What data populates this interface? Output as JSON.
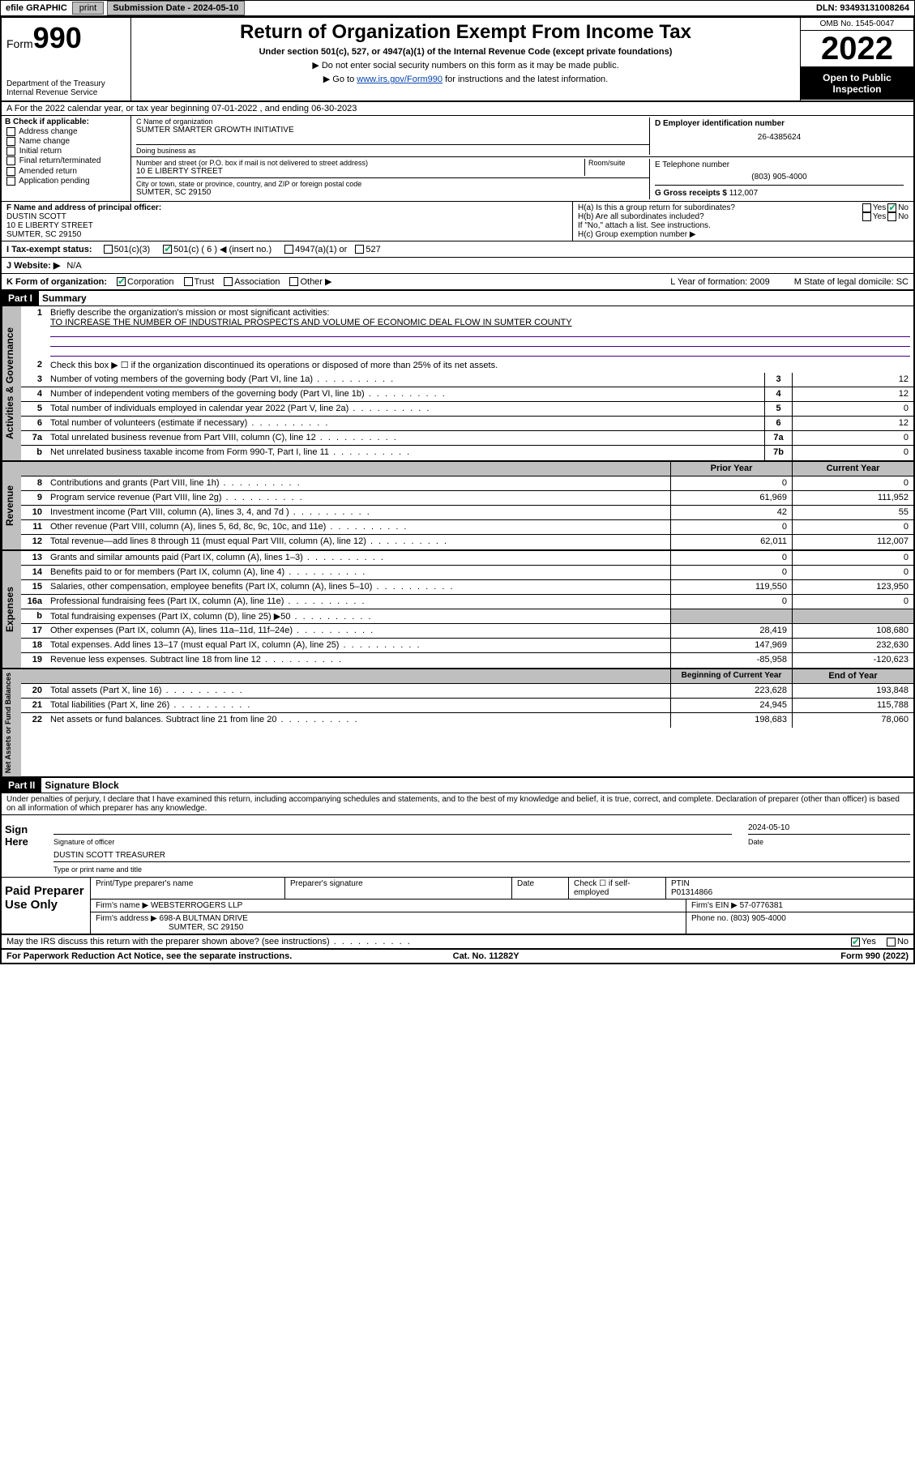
{
  "topbar": {
    "efile": "efile GRAPHIC",
    "print": "print",
    "submission": "Submission Date - 2024-05-10",
    "dln": "DLN: 93493131008264"
  },
  "header": {
    "form_prefix": "Form",
    "form_no": "990",
    "dept": "Department of the Treasury",
    "irs": "Internal Revenue Service",
    "title": "Return of Organization Exempt From Income Tax",
    "subtitle": "Under section 501(c), 527, or 4947(a)(1) of the Internal Revenue Code (except private foundations)",
    "note1": "▶ Do not enter social security numbers on this form as it may be made public.",
    "note2_pre": "▶ Go to ",
    "note2_link": "www.irs.gov/Form990",
    "note2_post": " for instructions and the latest information.",
    "omb": "OMB No. 1545-0047",
    "year": "2022",
    "open": "Open to Public Inspection"
  },
  "rowA": "A For the 2022 calendar year, or tax year beginning 07-01-2022    , and ending 06-30-2023",
  "colB": {
    "hdr": "B Check if applicable:",
    "items": [
      "Address change",
      "Name change",
      "Initial return",
      "Final return/terminated",
      "Amended return",
      "Application pending"
    ]
  },
  "colC": {
    "lblC": "C Name of organization",
    "name": "SUMTER SMARTER GROWTH INITIATIVE",
    "dba": "Doing business as",
    "lblAddr": "Number and street (or P.O. box if mail is not delivered to street address)",
    "room": "Room/suite",
    "addr": "10 E LIBERTY STREET",
    "lblCity": "City or town, state or province, country, and ZIP or foreign postal code",
    "city": "SUMTER, SC  29150"
  },
  "colD": {
    "lblD": "D Employer identification number",
    "ein": "26-4385624",
    "lblE": "E Telephone number",
    "phone": "(803) 905-4000",
    "lblG": "G Gross receipts $",
    "gross": "112,007"
  },
  "rowF": {
    "lbl": "F Name and address of principal officer:",
    "name": "DUSTIN SCOTT",
    "addr1": "10 E LIBERTY STREET",
    "addr2": "SUMTER, SC  29150"
  },
  "rowH": {
    "ha": "H(a)  Is this a group return for subordinates?",
    "hb": "H(b)  Are all subordinates included?",
    "hb2": "If \"No,\" attach a list. See instructions.",
    "hc": "H(c)  Group exemption number ▶"
  },
  "rowI": {
    "lbl": "I   Tax-exempt status:",
    "o1": "501(c)(3)",
    "o2": "501(c) ( 6 ) ◀ (insert no.)",
    "o3": "4947(a)(1) or",
    "o4": "527"
  },
  "rowJ": {
    "lbl": "J   Website: ▶",
    "val": "N/A"
  },
  "rowK": {
    "lbl": "K Form of organization:",
    "o1": "Corporation",
    "o2": "Trust",
    "o3": "Association",
    "o4": "Other ▶",
    "l": "L Year of formation: 2009",
    "m": "M State of legal domicile: SC"
  },
  "part1": {
    "hdr": "Part I",
    "title": "Summary",
    "l1a": "Briefly describe the organization's mission or most significant activities:",
    "l1b": "TO INCREASE THE NUMBER OF INDUSTRIAL PROSPECTS AND VOLUME OF ECONOMIC DEAL FLOW IN SUMTER COUNTY",
    "l2": "Check this box ▶ ☐  if the organization discontinued its operations or disposed of more than 25% of its net assets.",
    "rows_gov": [
      {
        "n": "3",
        "t": "Number of voting members of the governing body (Part VI, line 1a)",
        "b": "3",
        "v": "12"
      },
      {
        "n": "4",
        "t": "Number of independent voting members of the governing body (Part VI, line 1b)",
        "b": "4",
        "v": "12"
      },
      {
        "n": "5",
        "t": "Total number of individuals employed in calendar year 2022 (Part V, line 2a)",
        "b": "5",
        "v": "0"
      },
      {
        "n": "6",
        "t": "Total number of volunteers (estimate if necessary)",
        "b": "6",
        "v": "12"
      },
      {
        "n": "7a",
        "t": "Total unrelated business revenue from Part VIII, column (C), line 12",
        "b": "7a",
        "v": "0"
      },
      {
        "n": "b",
        "t": "Net unrelated business taxable income from Form 990-T, Part I, line 11",
        "b": "7b",
        "v": "0"
      }
    ],
    "col_prior": "Prior Year",
    "col_curr": "Current Year",
    "rev": [
      {
        "n": "8",
        "t": "Contributions and grants (Part VIII, line 1h)",
        "p": "0",
        "c": "0"
      },
      {
        "n": "9",
        "t": "Program service revenue (Part VIII, line 2g)",
        "p": "61,969",
        "c": "111,952"
      },
      {
        "n": "10",
        "t": "Investment income (Part VIII, column (A), lines 3, 4, and 7d )",
        "p": "42",
        "c": "55"
      },
      {
        "n": "11",
        "t": "Other revenue (Part VIII, column (A), lines 5, 6d, 8c, 9c, 10c, and 11e)",
        "p": "0",
        "c": "0"
      },
      {
        "n": "12",
        "t": "Total revenue—add lines 8 through 11 (must equal Part VIII, column (A), line 12)",
        "p": "62,011",
        "c": "112,007"
      }
    ],
    "exp": [
      {
        "n": "13",
        "t": "Grants and similar amounts paid (Part IX, column (A), lines 1–3)",
        "p": "0",
        "c": "0"
      },
      {
        "n": "14",
        "t": "Benefits paid to or for members (Part IX, column (A), line 4)",
        "p": "0",
        "c": "0"
      },
      {
        "n": "15",
        "t": "Salaries, other compensation, employee benefits (Part IX, column (A), lines 5–10)",
        "p": "119,550",
        "c": "123,950"
      },
      {
        "n": "16a",
        "t": "Professional fundraising fees (Part IX, column (A), line 11e)",
        "p": "0",
        "c": "0"
      },
      {
        "n": "b",
        "t": "Total fundraising expenses (Part IX, column (D), line 25) ▶50",
        "p": "",
        "c": ""
      },
      {
        "n": "17",
        "t": "Other expenses (Part IX, column (A), lines 11a–11d, 11f–24e)",
        "p": "28,419",
        "c": "108,680"
      },
      {
        "n": "18",
        "t": "Total expenses. Add lines 13–17 (must equal Part IX, column (A), line 25)",
        "p": "147,969",
        "c": "232,630"
      },
      {
        "n": "19",
        "t": "Revenue less expenses. Subtract line 18 from line 12",
        "p": "-85,958",
        "c": "-120,623"
      }
    ],
    "col_beg": "Beginning of Current Year",
    "col_end": "End of Year",
    "net": [
      {
        "n": "20",
        "t": "Total assets (Part X, line 16)",
        "p": "223,628",
        "c": "193,848"
      },
      {
        "n": "21",
        "t": "Total liabilities (Part X, line 26)",
        "p": "24,945",
        "c": "115,788"
      },
      {
        "n": "22",
        "t": "Net assets or fund balances. Subtract line 21 from line 20",
        "p": "198,683",
        "c": "78,060"
      }
    ],
    "tabs": {
      "gov": "Activities & Governance",
      "rev": "Revenue",
      "exp": "Expenses",
      "net": "Net Assets or Fund Balances"
    }
  },
  "part2": {
    "hdr": "Part II",
    "title": "Signature Block",
    "decl": "Under penalties of perjury, I declare that I have examined this return, including accompanying schedules and statements, and to the best of my knowledge and belief, it is true, correct, and complete. Declaration of preparer (other than officer) is based on all information of which preparer has any knowledge.",
    "sign_here": "Sign Here",
    "sig_officer": "Signature of officer",
    "sig_date": "2024-05-10",
    "date_lbl": "Date",
    "officer": "DUSTIN SCOTT TREASURER",
    "officer_lbl": "Type or print name and title",
    "paid": "Paid Preparer Use Only",
    "p_name_lbl": "Print/Type preparer's name",
    "p_sig_lbl": "Preparer's signature",
    "p_date_lbl": "Date",
    "p_check": "Check ☐ if self-employed",
    "ptin_lbl": "PTIN",
    "ptin": "P01314866",
    "firm_name_lbl": "Firm's name    ▶",
    "firm_name": "WEBSTERROGERS LLP",
    "firm_ein_lbl": "Firm's EIN ▶",
    "firm_ein": "57-0776381",
    "firm_addr_lbl": "Firm's address ▶",
    "firm_addr1": "698-A BULTMAN DRIVE",
    "firm_addr2": "SUMTER, SC  29150",
    "firm_phone_lbl": "Phone no.",
    "firm_phone": "(803) 905-4000",
    "may": "May the IRS discuss this return with the preparer shown above? (see instructions)"
  },
  "footer": {
    "l": "For Paperwork Reduction Act Notice, see the separate instructions.",
    "m": "Cat. No. 11282Y",
    "r": "Form 990 (2022)"
  },
  "yn": {
    "yes": "Yes",
    "no": "No"
  }
}
